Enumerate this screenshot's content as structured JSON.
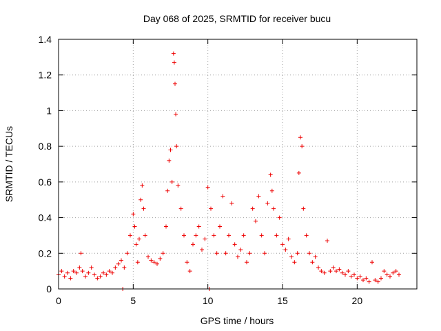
{
  "chart_data": {
    "type": "scatter",
    "title": "Day 068 of 2025, SRMTID for receiver bucu",
    "xlabel": "GPS time / hours",
    "ylabel": "SRMTID / TECUs",
    "xlim": [
      0,
      24
    ],
    "ylim": [
      0,
      1.4
    ],
    "x_ticks": [
      0,
      5,
      10,
      15,
      20
    ],
    "x_tick_labels": [
      "0",
      "5",
      "10",
      "15",
      "20"
    ],
    "y_ticks": [
      0,
      0.2,
      0.4,
      0.6,
      0.8,
      1,
      1.2,
      1.4
    ],
    "y_tick_labels": [
      "0",
      "0.2",
      "0.4",
      "0.6",
      "0.8",
      "1",
      "1.2",
      "1.4"
    ],
    "grid": true,
    "marker": "+",
    "color": "#ee0000",
    "series": [
      {
        "name": "SRMTID",
        "x": [
          0.0,
          0.2,
          0.4,
          0.6,
          0.8,
          1.0,
          1.2,
          1.4,
          1.5,
          1.6,
          1.8,
          2.0,
          2.2,
          2.4,
          2.6,
          2.8,
          3.0,
          3.2,
          3.4,
          3.6,
          3.8,
          4.0,
          4.2,
          4.3,
          4.4,
          4.6,
          4.8,
          5.0,
          5.1,
          5.2,
          5.3,
          5.4,
          5.5,
          5.6,
          5.7,
          5.8,
          6.0,
          6.2,
          6.4,
          6.6,
          6.8,
          7.0,
          7.2,
          7.3,
          7.4,
          7.5,
          7.6,
          7.7,
          7.75,
          7.8,
          7.85,
          7.9,
          8.0,
          8.2,
          8.4,
          8.6,
          8.8,
          9.0,
          9.2,
          9.4,
          9.6,
          9.8,
          10.0,
          10.1,
          10.2,
          10.4,
          10.6,
          10.8,
          11.0,
          11.2,
          11.4,
          11.6,
          11.8,
          12.0,
          12.2,
          12.4,
          12.6,
          12.8,
          13.0,
          13.2,
          13.4,
          13.6,
          13.8,
          14.0,
          14.2,
          14.3,
          14.4,
          14.6,
          14.8,
          15.0,
          15.2,
          15.4,
          15.6,
          15.8,
          16.0,
          16.1,
          16.2,
          16.3,
          16.4,
          16.6,
          16.8,
          17.0,
          17.2,
          17.4,
          17.6,
          17.8,
          18.0,
          18.2,
          18.4,
          18.6,
          18.8,
          19.0,
          19.2,
          19.4,
          19.6,
          19.8,
          20.0,
          20.2,
          20.4,
          20.6,
          20.8,
          21.0,
          21.2,
          21.4,
          21.6,
          21.8,
          22.0,
          22.2,
          22.4,
          22.6,
          22.8
        ],
        "y": [
          0.08,
          0.1,
          0.07,
          0.09,
          0.06,
          0.1,
          0.09,
          0.12,
          0.2,
          0.1,
          0.07,
          0.09,
          0.12,
          0.08,
          0.06,
          0.07,
          0.09,
          0.08,
          0.1,
          0.09,
          0.12,
          0.14,
          0.16,
          0.0,
          0.12,
          0.2,
          0.3,
          0.42,
          0.35,
          0.25,
          0.15,
          0.28,
          0.5,
          0.58,
          0.45,
          0.3,
          0.18,
          0.16,
          0.15,
          0.14,
          0.17,
          0.2,
          0.35,
          0.55,
          0.72,
          0.78,
          0.6,
          1.32,
          1.27,
          1.15,
          0.98,
          0.8,
          0.58,
          0.45,
          0.3,
          0.15,
          0.1,
          0.25,
          0.3,
          0.35,
          0.22,
          0.28,
          0.57,
          0.0,
          0.45,
          0.3,
          0.2,
          0.35,
          0.52,
          0.2,
          0.3,
          0.48,
          0.25,
          0.18,
          0.22,
          0.3,
          0.15,
          0.2,
          0.45,
          0.38,
          0.52,
          0.3,
          0.2,
          0.48,
          0.64,
          0.55,
          0.45,
          0.3,
          0.4,
          0.25,
          0.22,
          0.28,
          0.18,
          0.15,
          0.2,
          0.65,
          0.85,
          0.8,
          0.45,
          0.3,
          0.2,
          0.15,
          0.18,
          0.12,
          0.1,
          0.09,
          0.27,
          0.1,
          0.12,
          0.1,
          0.11,
          0.09,
          0.08,
          0.1,
          0.07,
          0.08,
          0.06,
          0.07,
          0.05,
          0.06,
          0.04,
          0.15,
          0.05,
          0.04,
          0.06,
          0.1,
          0.08,
          0.07,
          0.09,
          0.1,
          0.08
        ]
      }
    ]
  }
}
